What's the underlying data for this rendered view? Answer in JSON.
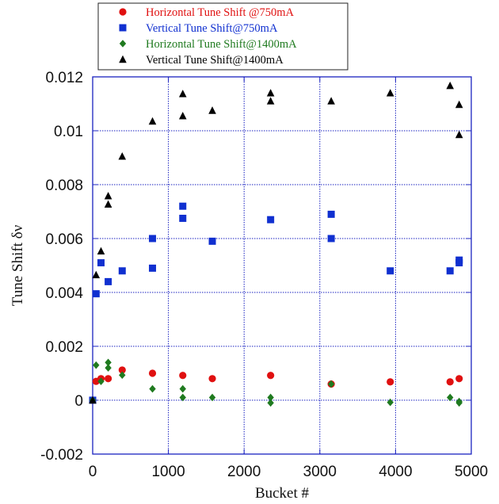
{
  "chart_data": {
    "type": "scatter",
    "xlabel": "Bucket #",
    "ylabel": "Tune Shift δν",
    "xlim": [
      0,
      5000
    ],
    "ylim": [
      -0.002,
      0.012
    ],
    "x_ticks": [
      0,
      1000,
      2000,
      3000,
      4000,
      5000
    ],
    "x_tick_labels": [
      "0",
      "1000",
      "2000",
      "3000",
      "4000",
      "5000"
    ],
    "y_ticks": [
      -0.002,
      0,
      0.002,
      0.004,
      0.006,
      0.008,
      0.01,
      0.012
    ],
    "y_tick_labels": [
      "-0.002",
      "0",
      "0.002",
      "0.004",
      "0.006",
      "0.008",
      "0.01",
      "0.012"
    ],
    "grid": true,
    "legend_position": "top-center, above plot",
    "series": [
      {
        "name": "Horizontal Tune Shift @750mA",
        "color": "#e01010",
        "marker": "circle",
        "points": [
          [
            0,
            0
          ],
          [
            45,
            0.0007
          ],
          [
            110,
            0.0008
          ],
          [
            205,
            0.0008
          ],
          [
            390,
            0.00112
          ],
          [
            790,
            0.001
          ],
          [
            1190,
            0.00092
          ],
          [
            1580,
            0.0008
          ],
          [
            2350,
            0.00092
          ],
          [
            3150,
            0.0006
          ],
          [
            3930,
            0.00068
          ],
          [
            4720,
            0.00068
          ],
          [
            4840,
            0.0008
          ]
        ]
      },
      {
        "name": "Vertical Tune Shift@750mA",
        "color": "#1030d0",
        "marker": "square",
        "points": [
          [
            0,
            0
          ],
          [
            45,
            0.00395
          ],
          [
            110,
            0.0051
          ],
          [
            205,
            0.0044
          ],
          [
            390,
            0.0048
          ],
          [
            790,
            0.0049
          ],
          [
            790,
            0.006
          ],
          [
            1190,
            0.0072
          ],
          [
            1190,
            0.00675
          ],
          [
            1580,
            0.0059
          ],
          [
            2350,
            0.0067
          ],
          [
            3150,
            0.0069
          ],
          [
            3150,
            0.006
          ],
          [
            3930,
            0.0048
          ],
          [
            4720,
            0.0048
          ],
          [
            4840,
            0.0051
          ],
          [
            4840,
            0.0052
          ]
        ]
      },
      {
        "name": "Horizontal Tune Shift@1400mA",
        "color": "#1f7a1f",
        "marker": "diamond",
        "points": [
          [
            0,
            0
          ],
          [
            45,
            0.0013
          ],
          [
            110,
            0.0007
          ],
          [
            205,
            0.0014
          ],
          [
            205,
            0.0012
          ],
          [
            390,
            0.00093
          ],
          [
            790,
            0.00042
          ],
          [
            1190,
            0.00042
          ],
          [
            1190,
            0.0001
          ],
          [
            1580,
            0.0001
          ],
          [
            2350,
            0.0001
          ],
          [
            2350,
            -0.0001
          ],
          [
            3150,
            0.0006
          ],
          [
            3930,
            -8e-05
          ],
          [
            4720,
            0.0001
          ],
          [
            4840,
            -5e-05
          ],
          [
            4840,
            -0.0001
          ]
        ]
      },
      {
        "name": "Vertical Tune Shift@1400mA",
        "color": "#000000",
        "marker": "triangle",
        "points": [
          [
            0,
            0
          ],
          [
            45,
            0.00465
          ],
          [
            110,
            0.00553
          ],
          [
            205,
            0.00758
          ],
          [
            205,
            0.00727
          ],
          [
            390,
            0.00905
          ],
          [
            790,
            0.01035
          ],
          [
            1190,
            0.01137
          ],
          [
            1190,
            0.01055
          ],
          [
            1580,
            0.01075
          ],
          [
            2350,
            0.0114
          ],
          [
            2350,
            0.0111
          ],
          [
            3150,
            0.0111
          ],
          [
            3930,
            0.0114
          ],
          [
            4720,
            0.01167
          ],
          [
            4840,
            0.01097
          ],
          [
            4840,
            0.00985
          ]
        ]
      }
    ]
  }
}
